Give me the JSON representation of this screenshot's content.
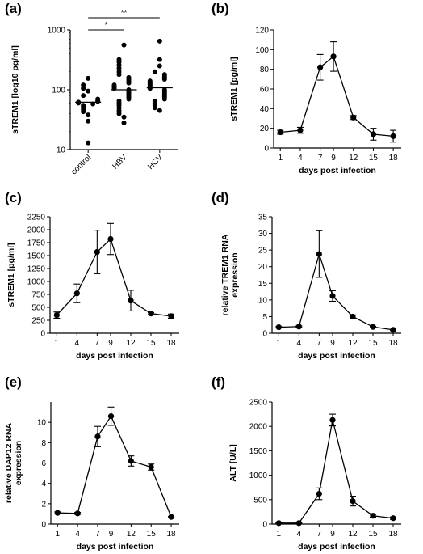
{
  "chart_data": [
    {
      "panel": "(a)",
      "type": "scatter",
      "ylabel": "sTREM1 [log10 pg/ml]",
      "xlabel": "",
      "yscale": "log",
      "ylim": [
        10,
        1000
      ],
      "yticks": [
        10,
        100,
        1000
      ],
      "categories": [
        "control",
        "HBV",
        "HCV"
      ],
      "medians": [
        62,
        100,
        108
      ],
      "groups": [
        {
          "name": "control",
          "values": [
            13,
            30,
            38,
            43,
            47,
            52,
            55,
            58,
            60,
            62,
            64,
            66,
            70,
            80,
            95,
            105,
            120,
            155
          ]
        },
        {
          "name": "HBV",
          "values": [
            28,
            35,
            40,
            45,
            50,
            55,
            60,
            65,
            70,
            75,
            80,
            85,
            90,
            95,
            100,
            105,
            110,
            115,
            120,
            130,
            140,
            150,
            160,
            180,
            200,
            230,
            260,
            290,
            320,
            560
          ]
        },
        {
          "name": "HCV",
          "values": [
            45,
            50,
            55,
            60,
            65,
            70,
            75,
            80,
            85,
            90,
            95,
            100,
            105,
            110,
            115,
            120,
            125,
            130,
            140,
            150,
            160,
            170,
            180,
            200,
            250,
            320,
            650
          ]
        }
      ],
      "significance": [
        {
          "from": "control",
          "to": "HBV",
          "label": "*"
        },
        {
          "from": "control",
          "to": "HCV",
          "label": "**"
        }
      ]
    },
    {
      "panel": "(b)",
      "type": "line",
      "ylabel": "sTREM1 [pg/ml]",
      "xlabel": "days post infection",
      "categories": [
        "1",
        "4",
        "7",
        "9",
        "12",
        "15",
        "18"
      ],
      "values": [
        16,
        18,
        82,
        93,
        31,
        14,
        12
      ],
      "errors": [
        2,
        3,
        13,
        15,
        2,
        6,
        6
      ],
      "ylim": [
        0,
        120
      ],
      "yticks": [
        0,
        20,
        40,
        60,
        80,
        100,
        120
      ]
    },
    {
      "panel": "(c)",
      "type": "line",
      "ylabel": "sTREM1 [pg/ml]",
      "xlabel": "days post infection",
      "categories": [
        "1",
        "4",
        "7",
        "9",
        "12",
        "15",
        "18"
      ],
      "values": [
        350,
        770,
        1570,
        1820,
        630,
        380,
        330
      ],
      "errors": [
        60,
        180,
        420,
        300,
        200,
        20,
        40
      ],
      "ylim": [
        0,
        2250
      ],
      "yticks": [
        0,
        250,
        500,
        750,
        1000,
        1250,
        1500,
        1750,
        2000,
        2250
      ]
    },
    {
      "panel": "(d)",
      "type": "line",
      "ylabel": "relative TREM1 RNA expression",
      "xlabel": "days post infection",
      "categories": [
        "1",
        "4",
        "7",
        "9",
        "12",
        "15",
        "18"
      ],
      "values": [
        1.8,
        2.0,
        23.8,
        11.2,
        5.0,
        1.9,
        1.0
      ],
      "errors": [
        0.2,
        0.2,
        7.0,
        1.6,
        0.5,
        0.2,
        0.2
      ],
      "ylim": [
        0,
        35
      ],
      "yticks": [
        0,
        5,
        10,
        15,
        20,
        25,
        30,
        35
      ]
    },
    {
      "panel": "(e)",
      "type": "line",
      "ylabel": "relative DAP12 RNA expression",
      "xlabel": "days post infection",
      "categories": [
        "1",
        "4",
        "7",
        "9",
        "12",
        "15",
        "18"
      ],
      "values": [
        1.1,
        1.05,
        8.6,
        10.6,
        6.2,
        5.6,
        0.7
      ],
      "errors": [
        0.1,
        0.1,
        1.0,
        0.9,
        0.5,
        0.3,
        0.05
      ],
      "ylim": [
        0,
        12
      ],
      "yticks": [
        0,
        2,
        4,
        6,
        8,
        10
      ]
    },
    {
      "panel": "(f)",
      "type": "line",
      "ylabel": "ALT [U/L]",
      "xlabel": "days post infection",
      "categories": [
        "1",
        "4",
        "7",
        "9",
        "12",
        "15",
        "18"
      ],
      "values": [
        20,
        20,
        620,
        2130,
        470,
        170,
        120
      ],
      "errors": [
        5,
        5,
        120,
        120,
        100,
        30,
        25
      ],
      "ylim": [
        0,
        2500
      ],
      "yticks": [
        0,
        500,
        1000,
        1500,
        2000,
        2500
      ]
    }
  ]
}
